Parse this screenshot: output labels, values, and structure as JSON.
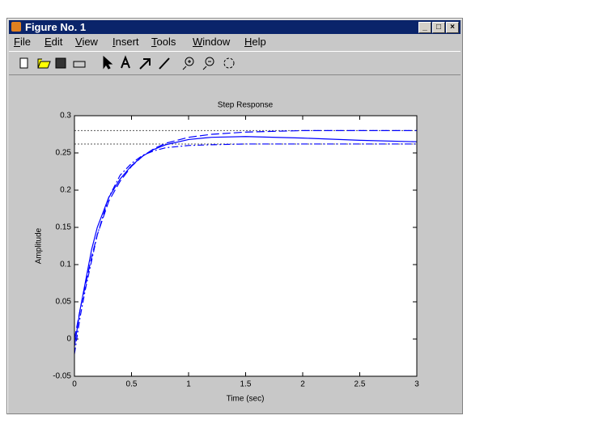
{
  "window": {
    "title": "Figure No. 1",
    "menu": [
      "File",
      "Edit",
      "View",
      "Insert",
      "Tools",
      "Window",
      "Help"
    ]
  },
  "chart_data": {
    "type": "line",
    "title": "Step Response",
    "x_label": "Time (sec)",
    "y_label": "Amplitude",
    "x": [
      0,
      0.05,
      0.1,
      0.15,
      0.2,
      0.3,
      0.4,
      0.5,
      0.6,
      0.7,
      0.8,
      1,
      1.2,
      1.5,
      2,
      2.5,
      3
    ],
    "series": [
      {
        "color": "#0000ff",
        "style": "solid",
        "values": [
          -0.01,
          0.04,
          0.08,
          0.12,
          0.15,
          0.19,
          0.215,
          0.233,
          0.246,
          0.255,
          0.261,
          0.268,
          0.271,
          0.272,
          0.27,
          0.267,
          0.265
        ]
      },
      {
        "color": "#0000ff",
        "style": "dashed",
        "values": [
          0,
          0.04,
          0.075,
          0.11,
          0.14,
          0.185,
          0.212,
          0.232,
          0.246,
          0.256,
          0.263,
          0.271,
          0.275,
          0.278,
          0.28,
          0.28,
          0.28
        ]
      },
      {
        "color": "#0000ff",
        "style": "dashdot",
        "values": [
          -0.02,
          0.03,
          0.07,
          0.105,
          0.14,
          0.19,
          0.22,
          0.236,
          0.247,
          0.253,
          0.257,
          0.26,
          0.261,
          0.262,
          0.262,
          0.262,
          0.262
        ]
      }
    ],
    "hlines": [
      0.28,
      0.262
    ],
    "hline_color": "#555555",
    "xlim": [
      0,
      3
    ],
    "xticks": [
      0,
      0.5,
      1,
      1.5,
      2,
      2.5,
      3
    ],
    "ylim": [
      -0.05,
      0.3
    ],
    "yticks": [
      -0.05,
      0,
      0.05,
      0.1,
      0.15,
      0.2,
      0.25,
      0.3
    ]
  }
}
